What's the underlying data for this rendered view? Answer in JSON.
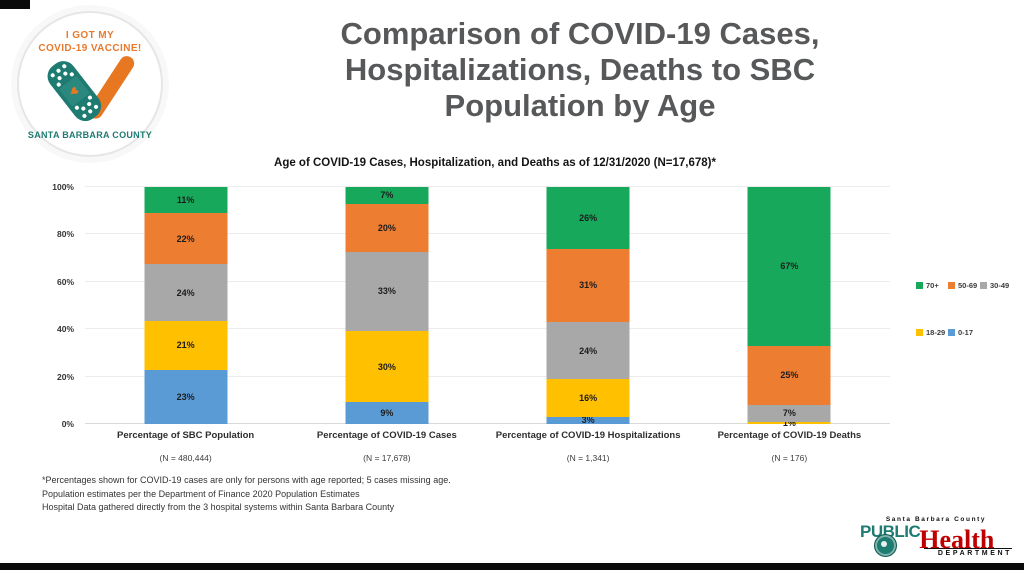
{
  "badge": {
    "line1": "I GOT MY",
    "line2": "COVID-19 VACCINE!",
    "caption": "SANTA BARBARA COUNTY"
  },
  "title_lines": [
    "Comparison of COVID-19 Cases,",
    "Hospitalizations, Deaths to SBC",
    "Population by Age"
  ],
  "chart_data": {
    "type": "bar",
    "stacked": true,
    "title": "Age of COVID-19 Cases, Hospitalization, and Deaths as of 12/31/2020 (N=17,678)*",
    "categories": [
      "Percentage of SBC Population",
      "Percentage of COVID-19 Cases",
      "Percentage of COVID-19 Hospitalizations",
      "Percentage of COVID-19 Deaths"
    ],
    "n_labels": [
      "(N = 480,444)",
      "(N = 17,678)",
      "(N = 1,341)",
      "(N = 176)"
    ],
    "y_ticks": [
      "0%",
      "20%",
      "40%",
      "60%",
      "80%",
      "100%"
    ],
    "ylim": [
      0,
      100
    ],
    "grid": true,
    "legend_position": "right",
    "series": [
      {
        "name": "0-17",
        "color": "#5B9BD5",
        "values": [
          23,
          9,
          3,
          0
        ]
      },
      {
        "name": "18-29",
        "color": "#FFC000",
        "values": [
          21,
          30,
          16,
          1
        ]
      },
      {
        "name": "30-49",
        "color": "#A8A8A8",
        "values": [
          24,
          33,
          24,
          7
        ]
      },
      {
        "name": "50-69",
        "color": "#ED7D31",
        "values": [
          22,
          20,
          31,
          25
        ]
      },
      {
        "name": "70+",
        "color": "#18A85B",
        "values": [
          11,
          7,
          26,
          67
        ]
      }
    ],
    "legend_rows": [
      [
        "70+",
        "50-69",
        "30-49"
      ],
      [
        "18-29",
        "0-17"
      ]
    ]
  },
  "footnotes": [
    "*Percentages shown for COVID-19 cases are only for persons with age reported; 5 cases missing age.",
    "Population estimates per the Department of Finance 2020 Population Estimates",
    "Hospital Data gathered directly from the 3 hospital systems within Santa Barbara County"
  ],
  "footer_logo": {
    "county": "Santa Barbara County",
    "public": "PUBLIC",
    "health": "Health",
    "department": "DEPARTMENT"
  },
  "colors": {
    "accent_green": "#18A85B",
    "accent_orange": "#ED7D31",
    "accent_gray": "#A8A8A8",
    "accent_yellow": "#FFC000",
    "accent_blue": "#5B9BD5",
    "title_gray": "#57585A",
    "badge_orange": "#E87722",
    "badge_teal": "#1E7B72",
    "health_red": "#C00000"
  }
}
